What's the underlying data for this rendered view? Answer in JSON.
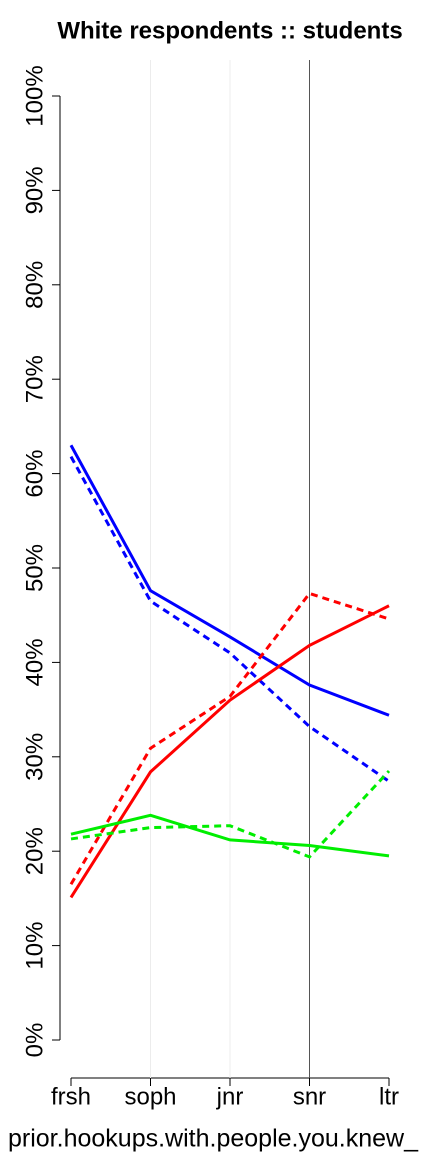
{
  "chart_data": {
    "type": "line",
    "title": "White respondents :: students",
    "x_label": "prior.hookups.with.people.you.knew_",
    "categories": [
      "frsh",
      "soph",
      "jnr",
      "snr",
      "ltr"
    ],
    "vline": "snr",
    "grid": true,
    "ylim": [
      0,
      100
    ],
    "yticks": [
      {
        "value": 0,
        "label": "0%"
      },
      {
        "value": 10,
        "label": "10%"
      },
      {
        "value": 20,
        "label": "20%"
      },
      {
        "value": 30,
        "label": "30%"
      },
      {
        "value": 40,
        "label": "40%"
      },
      {
        "value": 50,
        "label": "50%"
      },
      {
        "value": 60,
        "label": "60%"
      },
      {
        "value": 70,
        "label": "70%"
      },
      {
        "value": 80,
        "label": "80%"
      },
      {
        "value": 90,
        "label": "90%"
      },
      {
        "value": 100,
        "label": "100%"
      }
    ],
    "series": [
      {
        "color": "#0000ff",
        "dashed": false,
        "values": [
          63,
          47.6,
          42.7,
          37.6,
          34.4
        ]
      },
      {
        "color": "#0000ff",
        "dashed": true,
        "values": [
          61.8,
          46.5,
          41,
          33.2,
          27.4
        ]
      },
      {
        "color": "#ff0000",
        "dashed": false,
        "values": [
          15.1,
          28.4,
          36,
          41.8,
          46
        ]
      },
      {
        "color": "#ff0000",
        "dashed": true,
        "values": [
          16.5,
          30.9,
          36.4,
          47.3,
          44.6
        ]
      },
      {
        "color": "#00ee00",
        "dashed": false,
        "values": [
          21.8,
          23.8,
          21.2,
          20.6,
          19.5
        ]
      },
      {
        "color": "#00ee00",
        "dashed": true,
        "values": [
          21.3,
          22.5,
          22.7,
          19.4,
          28.5
        ]
      }
    ]
  }
}
